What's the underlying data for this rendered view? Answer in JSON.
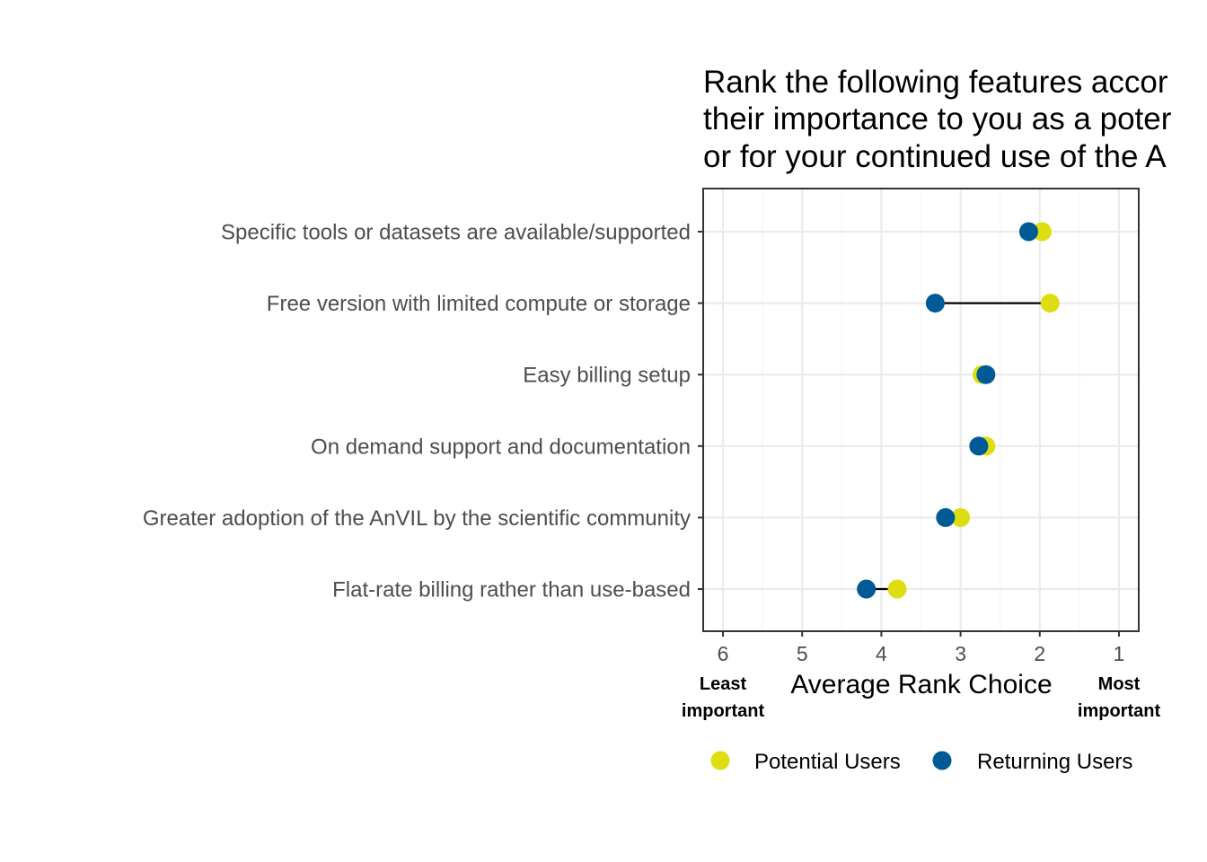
{
  "chart_data": {
    "type": "dumbbell",
    "title": [
      "Rank the following features accor",
      "their importance to you as a poter",
      "or for your continued use of the A"
    ],
    "xlabel": "Average Rank Choice",
    "x_ticks": [
      "6",
      "5",
      "4",
      "3",
      "2",
      "1"
    ],
    "xlim": [
      6.25,
      0.75
    ],
    "x_reversed": true,
    "left_end_label": [
      "Least",
      "important"
    ],
    "right_end_label": [
      "Most",
      "important"
    ],
    "categories": [
      "Specific tools or datasets are available/supported",
      "Free version with limited compute or storage",
      "Easy billing setup",
      "On demand support and documentation",
      "Greater adoption of the AnVIL by the scientific community",
      "Flat-rate billing rather than use-based"
    ],
    "series": [
      {
        "name": "Potential Users",
        "color": "#dddd11",
        "values": [
          1.97,
          1.87,
          2.73,
          2.68,
          3.0,
          3.8
        ]
      },
      {
        "name": "Returning Users",
        "color": "#005a96",
        "values": [
          2.14,
          3.32,
          2.68,
          2.77,
          3.19,
          4.19
        ]
      }
    ],
    "grid": true,
    "legend_position": "bottom"
  },
  "colors": {
    "panel_border": "#333333",
    "grid_major": "#ebebeb",
    "grid_minor": "#f5f5f5",
    "segment": "#000000"
  }
}
